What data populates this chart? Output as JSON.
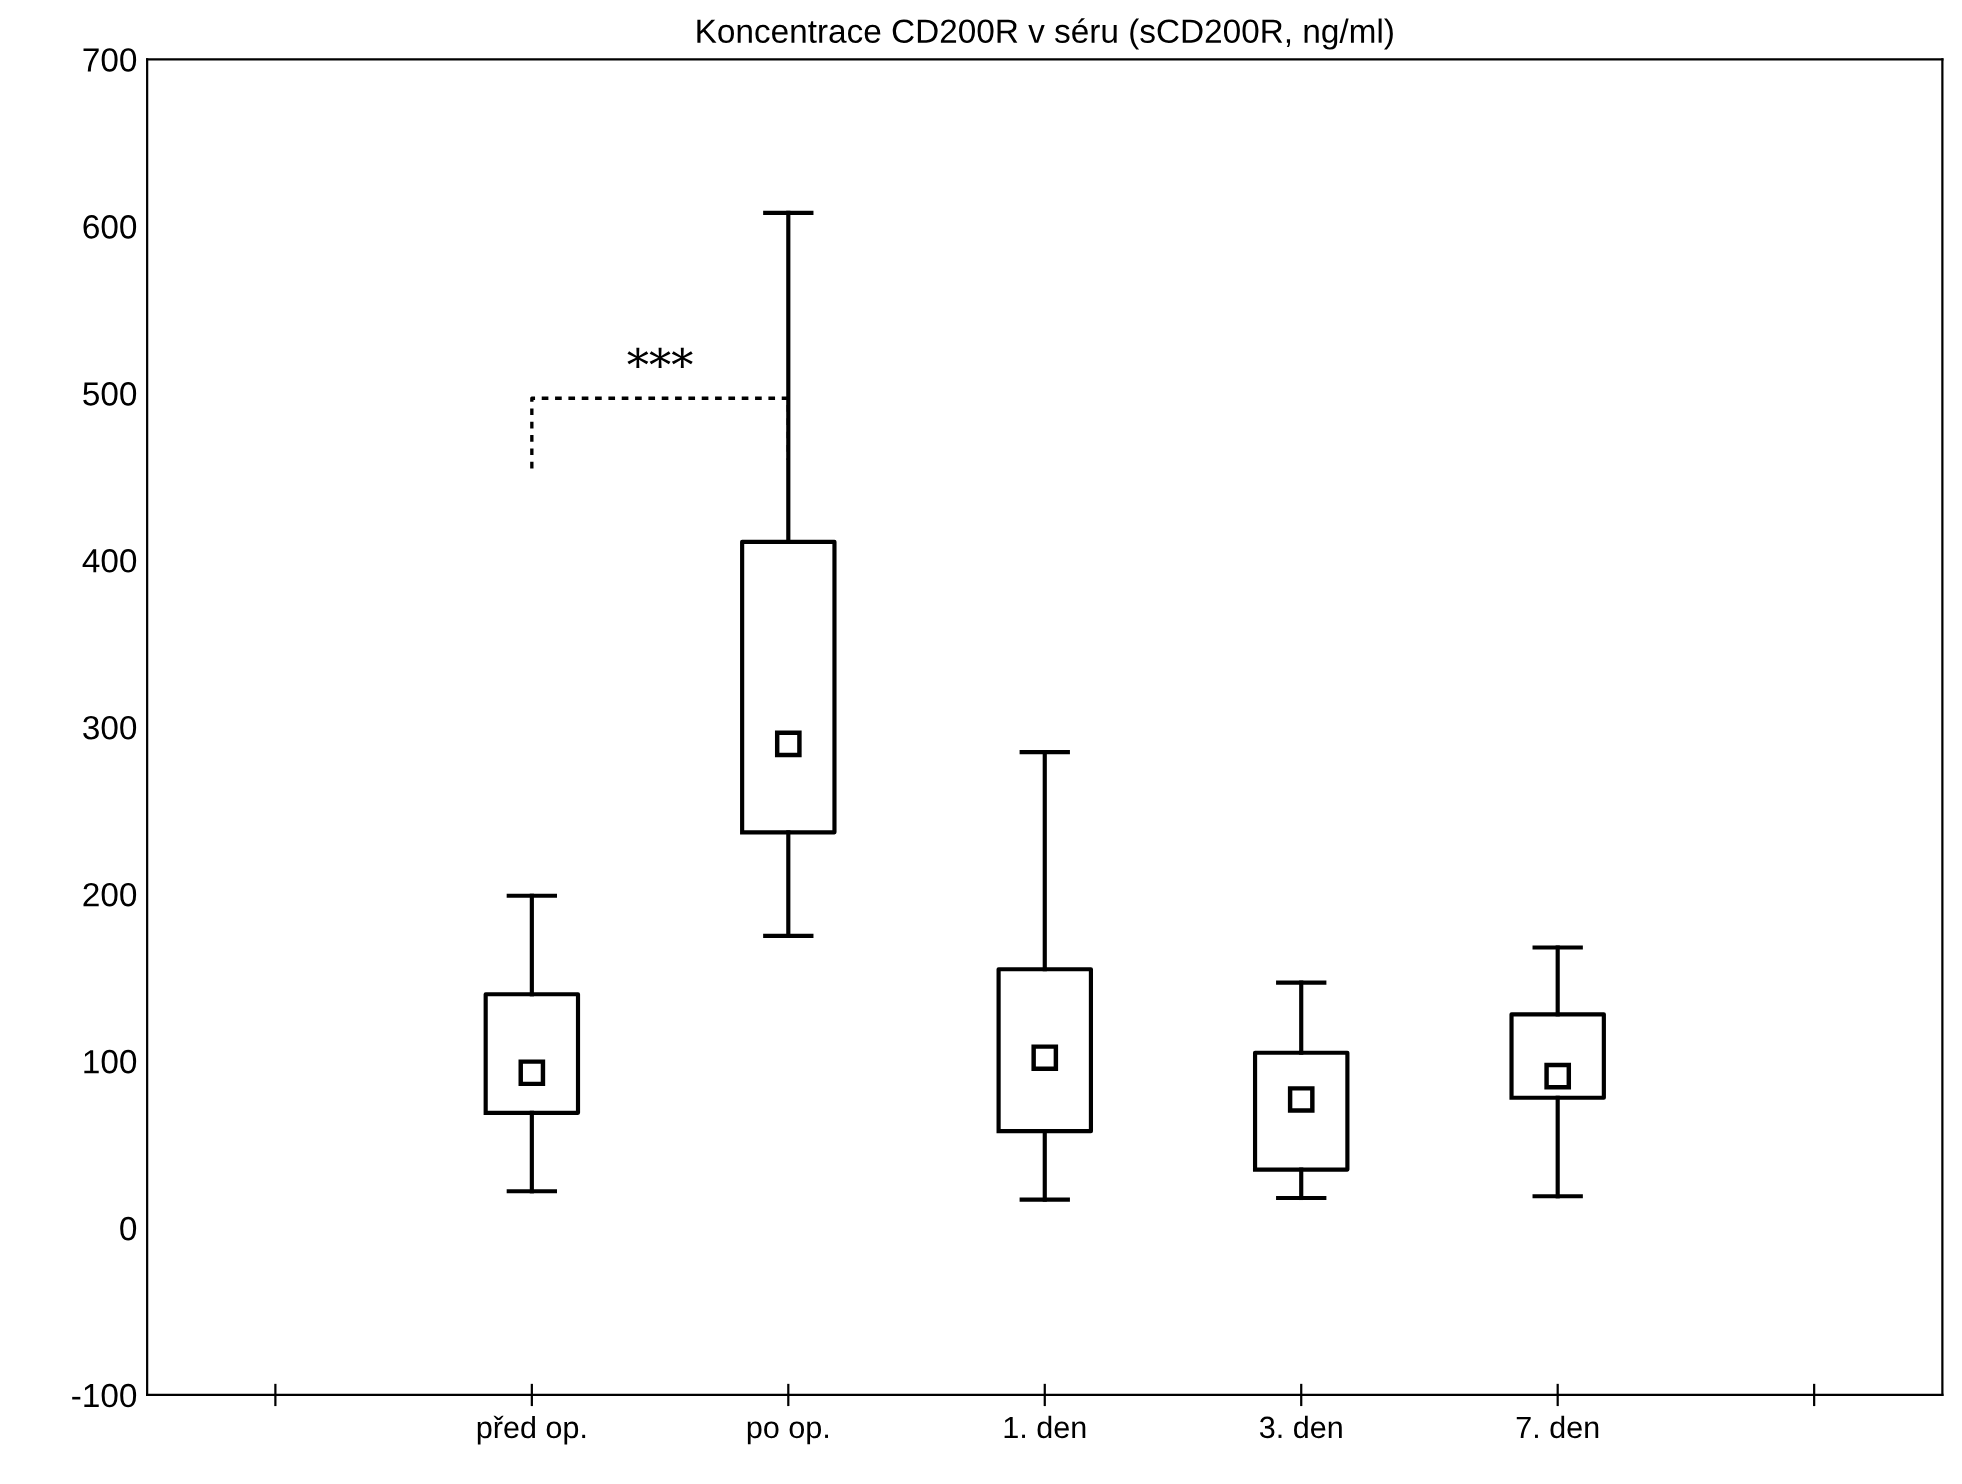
{
  "chart_data": {
    "type": "box",
    "title": "Koncentrace CD200R v séru (sCD200R, ng/ml)",
    "categories": [
      null,
      "před op.",
      "po op.",
      "1. den",
      "3. den",
      "7. den",
      null
    ],
    "boxes": [
      null,
      {
        "low": 22,
        "q1": 69,
        "median": 93,
        "q3": 140,
        "high": 199
      },
      {
        "low": 175,
        "q1": 237,
        "median": 290,
        "q3": 411,
        "high": 608
      },
      {
        "low": 17,
        "q1": 58,
        "median": 102,
        "q3": 155,
        "high": 285
      },
      {
        "low": 18,
        "q1": 35,
        "median": 77,
        "q3": 105,
        "high": 147
      },
      {
        "low": 19,
        "q1": 78,
        "median": 91,
        "q3": 128,
        "high": 168
      },
      null
    ],
    "ylim": [
      -100,
      700
    ],
    "yticks": [
      -100,
      0,
      100,
      200,
      300,
      400,
      500,
      600,
      700
    ],
    "marker": "square",
    "grid": false,
    "annotations": [
      "***"
    ]
  }
}
